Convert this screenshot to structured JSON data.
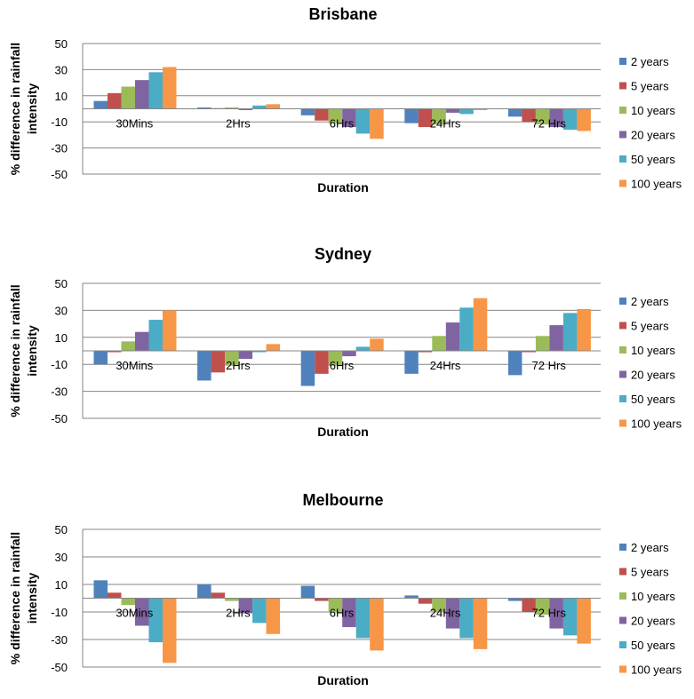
{
  "series_colors": [
    "#4F81BD",
    "#C0504D",
    "#9BBB59",
    "#8064A2",
    "#4BACC6",
    "#F79646"
  ],
  "chart_data": [
    {
      "type": "bar",
      "title": "Brisbane",
      "xlabel": "Duration",
      "ylabel_lines": [
        "% difference in rainfall",
        "intensity"
      ],
      "categories": [
        "30Mins",
        "2Hrs",
        "6Hrs",
        "24Hrs",
        "72 Hrs"
      ],
      "ylim": [
        -50,
        50
      ],
      "yticks": [
        -50,
        -30,
        -10,
        10,
        30,
        50
      ],
      "legend_position": "right",
      "series": [
        {
          "name": "2 years",
          "values": [
            6,
            1,
            -5,
            -11,
            -6
          ]
        },
        {
          "name": "5 years",
          "values": [
            12,
            0.5,
            -9,
            -14,
            -10
          ]
        },
        {
          "name": "10 years",
          "values": [
            17,
            1,
            -11,
            -12,
            -12
          ]
        },
        {
          "name": "20 years",
          "values": [
            22,
            -1,
            -14,
            -3,
            -14
          ]
        },
        {
          "name": "50 years",
          "values": [
            28,
            2.5,
            -19,
            -4,
            -16
          ]
        },
        {
          "name": "100 years",
          "values": [
            32,
            3.5,
            -23,
            -1,
            -17
          ]
        }
      ]
    },
    {
      "type": "bar",
      "title": "Sydney",
      "xlabel": "Duration",
      "ylabel_lines": [
        "% difference in rainfall",
        "intensity"
      ],
      "categories": [
        "30Mins",
        "2Hrs",
        "6Hrs",
        "24Hrs",
        "72 Hrs"
      ],
      "ylim": [
        -50,
        50
      ],
      "yticks": [
        -50,
        -30,
        -10,
        10,
        30,
        50
      ],
      "legend_position": "right",
      "series": [
        {
          "name": "2 years",
          "values": [
            -10,
            -22,
            -26,
            -17,
            -18
          ]
        },
        {
          "name": "5 years",
          "values": [
            -1,
            -16,
            -17,
            -1,
            -1
          ]
        },
        {
          "name": "10 years",
          "values": [
            7,
            -11,
            -11,
            11,
            11
          ]
        },
        {
          "name": "20 years",
          "values": [
            14,
            -6,
            -4,
            21,
            19
          ]
        },
        {
          "name": "50 years",
          "values": [
            23,
            -1,
            3,
            32,
            28
          ]
        },
        {
          "name": "100 years",
          "values": [
            30,
            5,
            9,
            39,
            31
          ]
        }
      ]
    },
    {
      "type": "bar",
      "title": "Melbourne",
      "xlabel": "Duration",
      "ylabel_lines": [
        "% difference in rainfall",
        "intensity"
      ],
      "categories": [
        "30Mins",
        "2Hrs",
        "6Hrs",
        "24Hrs",
        "72 Hrs"
      ],
      "ylim": [
        -50,
        50
      ],
      "yticks": [
        -50,
        -30,
        -10,
        10,
        30,
        50
      ],
      "legend_position": "right",
      "series": [
        {
          "name": "2 years",
          "values": [
            13,
            10,
            9,
            2,
            -2
          ]
        },
        {
          "name": "5 years",
          "values": [
            4,
            4,
            -2,
            -4,
            -10
          ]
        },
        {
          "name": "10 years",
          "values": [
            -5,
            -2,
            -10,
            -10,
            -12
          ]
        },
        {
          "name": "20 years",
          "values": [
            -20,
            -11,
            -21,
            -22,
            -22
          ]
        },
        {
          "name": "50 years",
          "values": [
            -32,
            -18,
            -29,
            -29,
            -27
          ]
        },
        {
          "name": "100 years",
          "values": [
            -47,
            -26,
            -38,
            -37,
            -33
          ]
        }
      ]
    }
  ]
}
